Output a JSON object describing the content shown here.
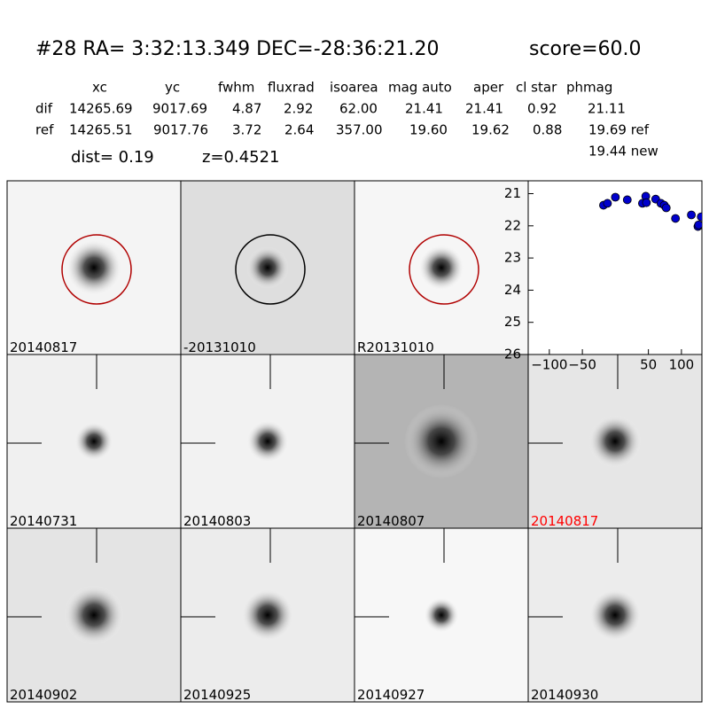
{
  "header": {
    "title": "#28   RA= 3:32:13.349 DEC=-28:36:21.20",
    "score": "score=60.0"
  },
  "table": {
    "columns": [
      "xc",
      "yc",
      "fwhm",
      "fluxrad",
      "isoarea",
      "mag auto",
      "aper",
      "cl star",
      "phmag"
    ],
    "rows": [
      [
        "dif",
        "14265.69",
        "9017.69",
        "4.87",
        "2.92",
        "62.00",
        "21.41",
        "21.41",
        "0.92",
        "21.11"
      ],
      [
        "ref",
        "14265.51",
        "9017.76",
        "3.72",
        "2.64",
        "357.00",
        "19.60",
        "19.62",
        "0.88",
        "19.69 ref"
      ]
    ],
    "extra": "19.44 new"
  },
  "info": {
    "dist": "dist=  0.19",
    "z": "z=0.4521"
  },
  "stamps": [
    "20140817",
    "-20131010",
    "R20131010",
    "20140731",
    "20140803",
    "20140807",
    "20140817",
    "20140902",
    "20140925",
    "20140927",
    "20140930"
  ],
  "chart_data": {
    "type": "scatter",
    "x": [
      -18,
      -12,
      0,
      18,
      41,
      46,
      47,
      61,
      69,
      74,
      77,
      91,
      115,
      125,
      126,
      130
    ],
    "series": [
      {
        "color": "#0000cc",
        "values": [
          21.36,
          21.3,
          21.11,
          21.19,
          21.3,
          21.08,
          21.28,
          21.17,
          21.3,
          21.36,
          21.44,
          21.77,
          21.66,
          22.02,
          21.97,
          21.72
        ]
      }
    ],
    "xlim": [
      -132,
      131
    ],
    "ylim": [
      26,
      20.6
    ],
    "xticks": [
      {
        "value": -100,
        "label": "−100"
      },
      {
        "value": -50,
        "label": "−50"
      },
      50,
      100
    ],
    "yticks": [
      21,
      22,
      23,
      24,
      25,
      26
    ]
  }
}
